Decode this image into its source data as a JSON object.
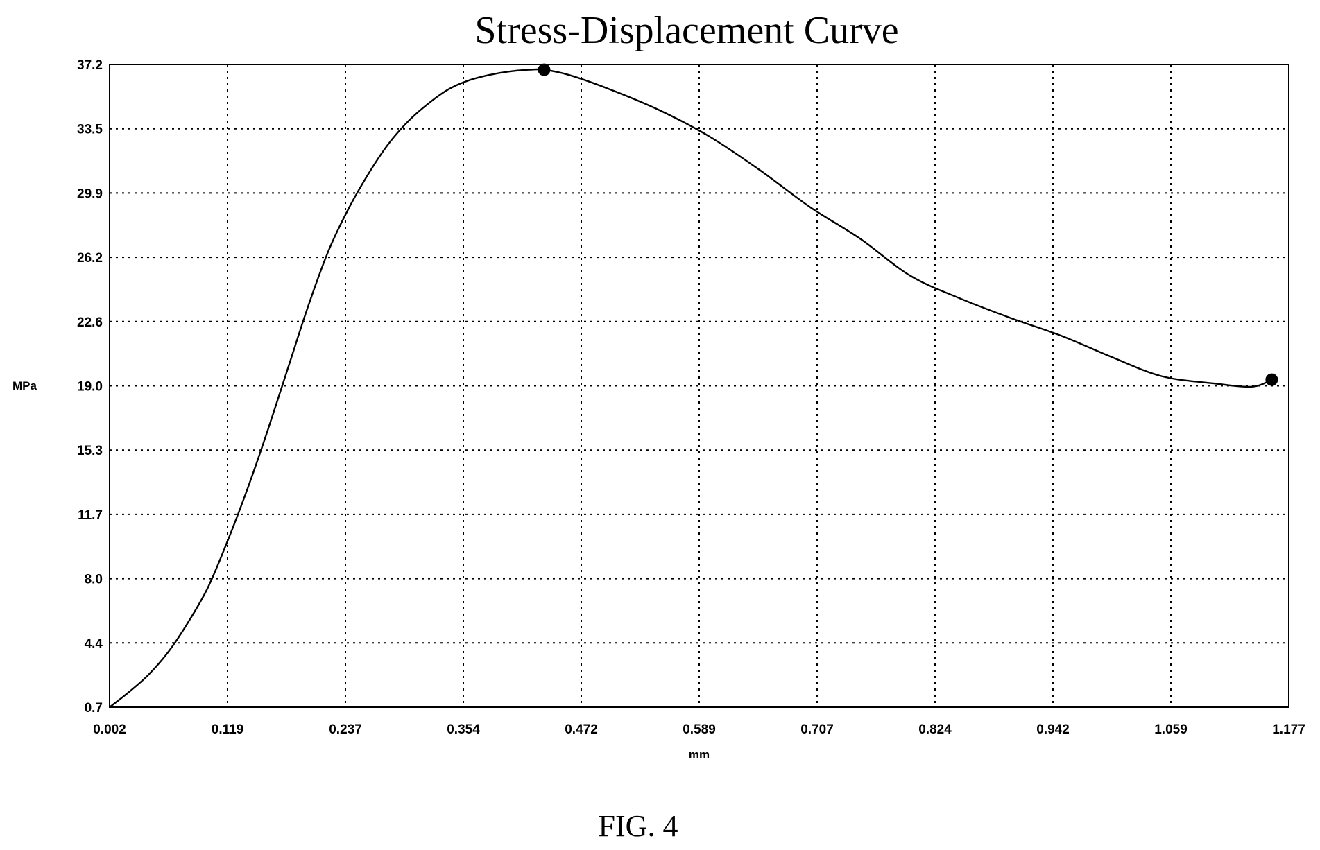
{
  "chart_data": {
    "type": "line",
    "title": "Stress-Displacement Curve",
    "xlabel": "mm",
    "ylabel": "MPa",
    "xlim": [
      0.002,
      1.177
    ],
    "ylim": [
      0.7,
      37.2
    ],
    "grid": true,
    "x_ticks": [
      "0.002",
      "0.119",
      "0.237",
      "0.354",
      "0.472",
      "0.589",
      "0.707",
      "0.824",
      "0.942",
      "1.059",
      "1.177"
    ],
    "y_ticks": [
      "0.7",
      "4.4",
      "8.0",
      "11.7",
      "15.3",
      "19.0",
      "22.6",
      "26.2",
      "29.9",
      "33.5",
      "37.2"
    ],
    "series": [
      {
        "x": [
          0.002,
          0.02,
          0.04,
          0.06,
          0.08,
          0.1,
          0.12,
          0.14,
          0.16,
          0.18,
          0.2,
          0.22,
          0.24,
          0.26,
          0.28,
          0.3,
          0.32,
          0.34,
          0.36,
          0.38,
          0.4,
          0.42,
          0.435,
          0.46,
          0.5,
          0.55,
          0.6,
          0.65,
          0.7,
          0.75,
          0.8,
          0.85,
          0.9,
          0.95,
          1.0,
          1.05,
          1.1,
          1.14,
          1.16
        ],
        "y": [
          0.7,
          1.5,
          2.5,
          3.8,
          5.5,
          7.5,
          10.2,
          13.2,
          16.5,
          20.0,
          23.5,
          26.6,
          29.0,
          31.0,
          32.7,
          34.0,
          35.0,
          35.8,
          36.3,
          36.6,
          36.8,
          36.9,
          36.9,
          36.6,
          35.8,
          34.6,
          33.1,
          31.2,
          29.1,
          27.3,
          25.2,
          23.9,
          22.8,
          21.8,
          20.6,
          19.5,
          19.1,
          18.9,
          19.3
        ]
      }
    ],
    "markers": [
      {
        "x": 0.435,
        "y": 36.9
      },
      {
        "x": 1.16,
        "y": 19.3
      }
    ]
  },
  "figure_caption": "FIG. 4"
}
